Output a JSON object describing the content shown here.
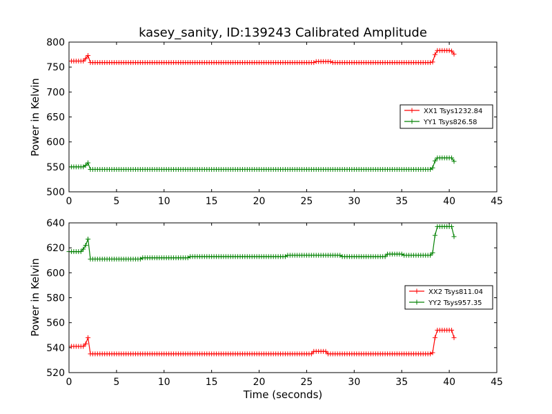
{
  "chart_data": [
    {
      "type": "line",
      "title": "kasey_sanity, ID:139243 Calibrated Amplitude",
      "xlabel": "",
      "ylabel": "Power in Kelvin",
      "xlim": [
        0,
        45
      ],
      "ylim": [
        500,
        800
      ],
      "xticks": [
        "0",
        "5",
        "10",
        "15",
        "20",
        "25",
        "30",
        "35",
        "40",
        "45"
      ],
      "yticks": [
        "500",
        "550",
        "600",
        "650",
        "700",
        "750",
        "800"
      ],
      "grid": false,
      "legend_position": "right",
      "series": [
        {
          "name": "XX1 Tsys1232.84",
          "color": "#ff0000",
          "marker": "plus",
          "segments": [
            {
              "x_start": 0.25,
              "x_end": 1.5,
              "y": 762
            },
            {
              "x": 1.75,
              "y": 767
            },
            {
              "x": 2.0,
              "y": 773
            },
            {
              "x_start": 2.25,
              "x_end": 7.0,
              "y": 759
            },
            {
              "x_start": 7.25,
              "x_end": 19.75,
              "y": 759
            },
            {
              "x_start": 20.0,
              "x_end": 25.75,
              "y": 759
            },
            {
              "x_start": 26.0,
              "x_end": 27.5,
              "y": 761
            },
            {
              "x_start": 27.75,
              "x_end": 38.0,
              "y": 759
            },
            {
              "x": 38.25,
              "y": 760
            },
            {
              "x": 38.5,
              "y": 775
            },
            {
              "x_start": 38.75,
              "x_end": 40.0,
              "y": 783
            },
            {
              "x": 40.25,
              "y": 782
            },
            {
              "x": 40.5,
              "y": 776
            }
          ]
        },
        {
          "name": "YY1 Tsys826.58",
          "color": "#008000",
          "marker": "plus",
          "segments": [
            {
              "x_start": 0.25,
              "x_end": 1.5,
              "y": 550
            },
            {
              "x": 1.75,
              "y": 553
            },
            {
              "x": 2.0,
              "y": 558
            },
            {
              "x_start": 2.25,
              "x_end": 38.0,
              "y": 545
            },
            {
              "x": 38.25,
              "y": 548
            },
            {
              "x": 38.5,
              "y": 562
            },
            {
              "x_start": 38.75,
              "x_end": 40.25,
              "y": 568
            },
            {
              "x": 40.5,
              "y": 561
            }
          ]
        }
      ]
    },
    {
      "type": "line",
      "title": "",
      "xlabel": "Time (seconds)",
      "ylabel": "Power in Kelvin",
      "xlim": [
        0,
        45
      ],
      "ylim": [
        520,
        640
      ],
      "xticks": [
        "0",
        "5",
        "10",
        "15",
        "20",
        "25",
        "30",
        "35",
        "40",
        "45"
      ],
      "yticks": [
        "520",
        "540",
        "560",
        "580",
        "600",
        "620",
        "640"
      ],
      "grid": false,
      "legend_position": "right",
      "series": [
        {
          "name": "XX2 Tsys811.04",
          "color": "#ff0000",
          "marker": "plus",
          "segments": [
            {
              "x_start": 0.25,
              "x_end": 1.5,
              "y": 541
            },
            {
              "x": 1.75,
              "y": 543
            },
            {
              "x": 2.0,
              "y": 548
            },
            {
              "x_start": 2.25,
              "x_end": 25.5,
              "y": 535
            },
            {
              "x_start": 25.75,
              "x_end": 27.0,
              "y": 537
            },
            {
              "x_start": 27.25,
              "x_end": 38.0,
              "y": 535
            },
            {
              "x": 38.25,
              "y": 536
            },
            {
              "x": 38.5,
              "y": 548
            },
            {
              "x_start": 38.75,
              "x_end": 40.25,
              "y": 554
            },
            {
              "x": 40.5,
              "y": 548
            }
          ]
        },
        {
          "name": "YY2 Tsys957.35",
          "color": "#008000",
          "marker": "plus",
          "segments": [
            {
              "x_start": 0.0,
              "x_end": 1.25,
              "y": 617
            },
            {
              "x": 1.5,
              "y": 619
            },
            {
              "x": 1.75,
              "y": 622
            },
            {
              "x": 2.0,
              "y": 627
            },
            {
              "x_start": 2.25,
              "x_end": 7.5,
              "y": 611
            },
            {
              "x_start": 7.75,
              "x_end": 12.5,
              "y": 612
            },
            {
              "x_start": 12.75,
              "x_end": 22.75,
              "y": 613
            },
            {
              "x_start": 23.0,
              "x_end": 28.5,
              "y": 614
            },
            {
              "x_start": 28.75,
              "x_end": 33.25,
              "y": 613
            },
            {
              "x_start": 33.5,
              "x_end": 35.0,
              "y": 615
            },
            {
              "x_start": 35.25,
              "x_end": 38.0,
              "y": 614
            },
            {
              "x": 38.25,
              "y": 616
            },
            {
              "x": 38.5,
              "y": 630
            },
            {
              "x_start": 38.75,
              "x_end": 40.25,
              "y": 637
            },
            {
              "x": 40.5,
              "y": 629
            }
          ]
        }
      ]
    }
  ]
}
